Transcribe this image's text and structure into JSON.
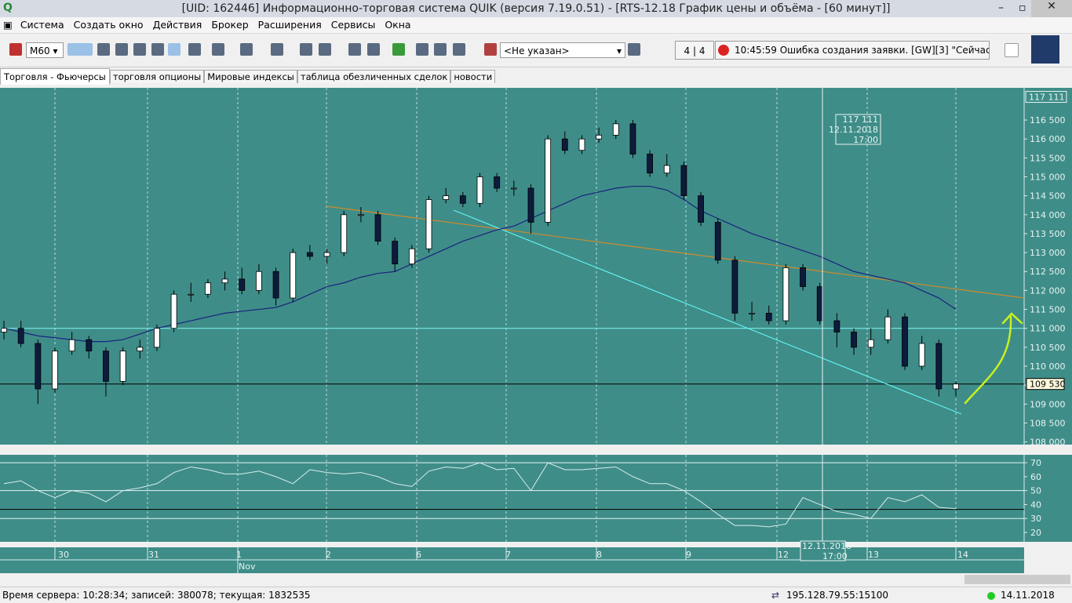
{
  "window": {
    "title": "[UID: 162446] Информационно-торговая система QUIK (версия 7.19.0.51) - [RTS-12.18 График цены и объёма - [60 минут]]"
  },
  "menu": [
    "Система",
    "Создать окно",
    "Действия",
    "Брокер",
    "Расширения",
    "Сервисы",
    "Окна"
  ],
  "toolbar": {
    "interval": "M60",
    "account": "<Не указан>",
    "counter": "4 | 4",
    "message": "10:45:59 Ошибка создания заявки. [GW][3] \"Сейчас эта сессия"
  },
  "tabs": [
    "Торговля - Фьючерсы",
    "торговля опционы",
    "Мировые индексы",
    "таблица обезличенных сделок",
    "новости"
  ],
  "chart_data": {
    "type": "candlestick",
    "candles": [
      [
        110900,
        111200,
        110700,
        111000
      ],
      [
        111000,
        111200,
        110500,
        110600
      ],
      [
        110600,
        110700,
        109000,
        109400
      ],
      [
        109400,
        110500,
        109300,
        110400
      ],
      [
        110400,
        110900,
        110300,
        110700
      ],
      [
        110700,
        110800,
        110200,
        110400
      ],
      [
        110400,
        110500,
        109200,
        109600
      ],
      [
        109600,
        110500,
        109500,
        110400
      ],
      [
        110400,
        110700,
        110200,
        110500
      ],
      [
        110500,
        111100,
        110400,
        111000
      ],
      [
        111000,
        112000,
        110900,
        111900
      ],
      [
        111900,
        112200,
        111700,
        111900
      ],
      [
        111900,
        112300,
        111800,
        112200
      ],
      [
        112200,
        112500,
        112000,
        112300
      ],
      [
        112300,
        112600,
        111900,
        112000
      ],
      [
        112000,
        112700,
        111900,
        112500
      ],
      [
        112500,
        112600,
        111600,
        111800
      ],
      [
        111800,
        113100,
        111700,
        113000
      ],
      [
        113000,
        113200,
        112800,
        112900
      ],
      [
        112900,
        113100,
        112700,
        113000
      ],
      [
        113000,
        114100,
        112900,
        114000
      ],
      [
        114000,
        114200,
        113800,
        114000
      ],
      [
        114000,
        114100,
        113200,
        113300
      ],
      [
        113300,
        113400,
        112500,
        112700
      ],
      [
        112700,
        113200,
        112600,
        113100
      ],
      [
        113100,
        114500,
        113000,
        114400
      ],
      [
        114400,
        114700,
        114300,
        114500
      ],
      [
        114500,
        114600,
        114200,
        114300
      ],
      [
        114300,
        115100,
        114200,
        115000
      ],
      [
        115000,
        115100,
        114600,
        114700
      ],
      [
        114700,
        114900,
        114500,
        114700
      ],
      [
        114700,
        114800,
        113500,
        113800
      ],
      [
        113800,
        116100,
        113700,
        116000
      ],
      [
        116000,
        116200,
        115600,
        115700
      ],
      [
        115700,
        116100,
        115600,
        116000
      ],
      [
        116000,
        116300,
        115900,
        116100
      ],
      [
        116100,
        116500,
        116000,
        116400
      ],
      [
        116400,
        116500,
        115500,
        115600
      ],
      [
        115600,
        115700,
        115000,
        115100
      ],
      [
        115100,
        115600,
        115000,
        115300
      ],
      [
        115300,
        115400,
        114400,
        114500
      ],
      [
        114500,
        114600,
        113700,
        113800
      ],
      [
        113800,
        113900,
        112700,
        112800
      ],
      [
        112800,
        112900,
        111200,
        111400
      ],
      [
        111400,
        111700,
        111200,
        111400
      ],
      [
        111400,
        111600,
        111100,
        111200
      ],
      [
        111200,
        112700,
        111100,
        112600
      ],
      [
        112600,
        112700,
        112000,
        112100
      ],
      [
        112100,
        112200,
        111100,
        111200
      ],
      [
        111200,
        111400,
        110500,
        110900
      ],
      [
        110900,
        111000,
        110300,
        110500
      ],
      [
        110500,
        111000,
        110300,
        110700
      ],
      [
        110700,
        111500,
        110600,
        111300
      ],
      [
        111300,
        111400,
        109900,
        110000
      ],
      [
        110000,
        110800,
        109900,
        110600
      ],
      [
        110600,
        110700,
        109200,
        109400
      ],
      [
        109400,
        109600,
        109200,
        109530
      ]
    ],
    "ma": [
      111000,
      110900,
      110800,
      110750,
      110700,
      110650,
      110650,
      110700,
      110850,
      111000,
      111100,
      111200,
      111300,
      111400,
      111450,
      111500,
      111550,
      111700,
      111900,
      112100,
      112200,
      112350,
      112450,
      112500,
      112700,
      112900,
      113100,
      113300,
      113450,
      113600,
      113700,
      113900,
      114100,
      114300,
      114500,
      114600,
      114700,
      114750,
      114750,
      114650,
      114400,
      114100,
      113900,
      113700,
      113500,
      113350,
      113200,
      113050,
      112900,
      112700,
      112500,
      112400,
      112300,
      112200,
      112000,
      111800,
      111500
    ],
    "ma_color": "#1a237e",
    "bull_color": "#ffffff",
    "bear_color": "#0d1b3d",
    "background": "#3f8d88",
    "ylim": [
      107950,
      117350
    ],
    "yticks": [
      {
        "value": 108000,
        "label": "108 000"
      },
      {
        "value": 108500,
        "label": "108 500"
      },
      {
        "value": 109000,
        "label": "109 000"
      },
      {
        "value": 109500,
        "label": "109 500"
      },
      {
        "value": 110000,
        "label": "110 000"
      },
      {
        "value": 110500,
        "label": "110 500"
      },
      {
        "value": 111000,
        "label": "111 000"
      },
      {
        "value": 111500,
        "label": "111 500"
      },
      {
        "value": 112000,
        "label": "112 000"
      },
      {
        "value": 112500,
        "label": "112 500"
      },
      {
        "value": 113000,
        "label": "113 000"
      },
      {
        "value": 113500,
        "label": "113 500"
      },
      {
        "value": 114000,
        "label": "114 000"
      },
      {
        "value": 114500,
        "label": "114 500"
      },
      {
        "value": 115000,
        "label": "115 000"
      },
      {
        "value": 115500,
        "label": "115 500"
      },
      {
        "value": 116000,
        "label": "116 000"
      },
      {
        "value": 116500,
        "label": "116 500"
      }
    ],
    "level": 111000,
    "last_price": {
      "value": 109530,
      "label": "109 530"
    },
    "crosshair": {
      "price": {
        "value": 117111,
        "label": "117 111"
      },
      "date": "12.11.2018",
      "time": "17:00"
    },
    "indicator": {
      "values": [
        55,
        57,
        50,
        45,
        50,
        48,
        42,
        50,
        52,
        55,
        63,
        67,
        65,
        62,
        62,
        64,
        60,
        55,
        65,
        63,
        62,
        63,
        60,
        55,
        53,
        64,
        67,
        66,
        70,
        65,
        66,
        50,
        70,
        65,
        65,
        66,
        67,
        60,
        55,
        55,
        50,
        42,
        33,
        25,
        25,
        24,
        26,
        45,
        40,
        35,
        33,
        30,
        45,
        42,
        47,
        38,
        37
      ],
      "ylim": [
        13.8,
        75.7
      ],
      "yticks": [
        20,
        30,
        40,
        50,
        60,
        70
      ],
      "levels": [
        30,
        50,
        70
      ],
      "level": 36.5
    },
    "days": [
      "30",
      "31",
      "1",
      "2",
      "6",
      "7",
      "8",
      "9",
      "12",
      "13",
      "14"
    ],
    "month": "Nov"
  },
  "status": {
    "server": "Время сервера: 10:28:34; записей: 380078; текущая: 1832535",
    "ip": "195.128.79.55:15100",
    "date": "14.11.2018"
  }
}
